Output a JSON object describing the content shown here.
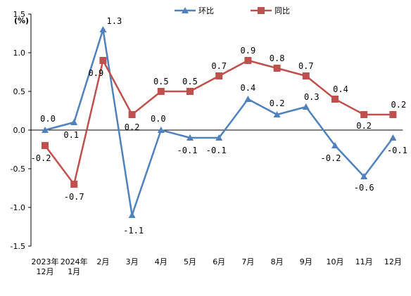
{
  "chart_data": {
    "type": "line",
    "title": "",
    "xlabel": "",
    "ylabel": "",
    "unit": "(%)",
    "ylim": [
      -1.5,
      1.5
    ],
    "yticks": [
      "1.5",
      "1.0",
      "0.5",
      "0.0",
      "-0.5",
      "-1.0",
      "-1.5"
    ],
    "ytick_values": [
      1.5,
      1.0,
      0.5,
      0.0,
      -0.5,
      -1.0,
      -1.5
    ],
    "categories": [
      [
        "2023年",
        "12月"
      ],
      [
        "2024年",
        "1月"
      ],
      [
        "2月"
      ],
      [
        "3月"
      ],
      [
        "4月"
      ],
      [
        "5月"
      ],
      [
        "6月"
      ],
      [
        "7月"
      ],
      [
        "8月"
      ],
      [
        "9月"
      ],
      [
        "10月"
      ],
      [
        "11月"
      ],
      [
        "12月"
      ]
    ],
    "legend_position": "top-center",
    "series": [
      {
        "name": "环比",
        "color": "#4f81bd",
        "marker": "triangle",
        "values": [
          0.0,
          0.1,
          1.3,
          -1.1,
          0.0,
          -0.1,
          -0.1,
          0.4,
          0.2,
          0.3,
          -0.2,
          -0.6,
          -0.1
        ],
        "labels": [
          "0.0",
          "0.1",
          "1.3",
          "-1.1",
          "0.0",
          "-0.1",
          "-0.1",
          "0.4",
          "0.2",
          "0.3",
          "-0.2",
          "-0.6",
          "-0.1"
        ]
      },
      {
        "name": "同比",
        "color": "#c0504d",
        "marker": "square",
        "values": [
          -0.2,
          -0.7,
          0.9,
          0.2,
          0.5,
          0.5,
          0.7,
          0.9,
          0.8,
          0.7,
          0.4,
          0.2,
          0.2
        ],
        "labels": [
          "-0.2",
          "-0.7",
          "0.9",
          "0.2",
          "0.5",
          "0.5",
          "0.7",
          "0.9",
          "0.8",
          "0.7",
          "0.4",
          "0.2",
          "0.2"
        ]
      }
    ]
  }
}
